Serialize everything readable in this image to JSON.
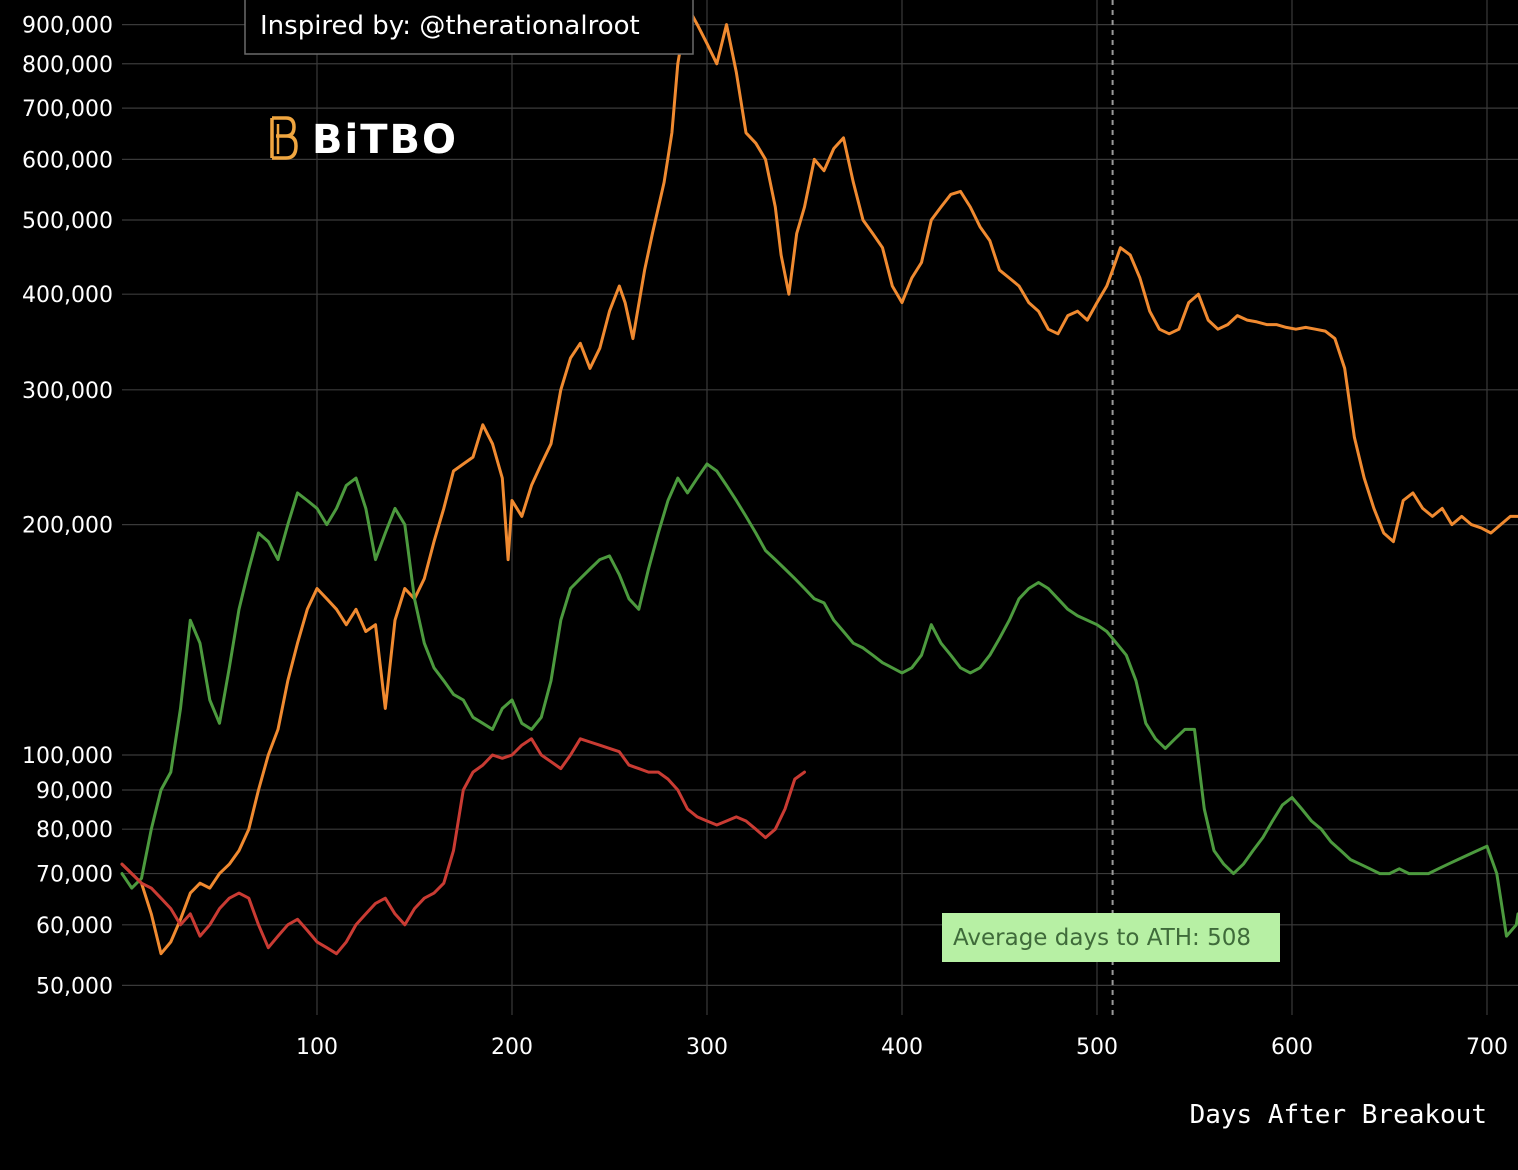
{
  "chart_data": {
    "type": "line",
    "title": "",
    "xlabel": "Days After Breakout",
    "ylabel": "",
    "xlim": [
      0,
      720
    ],
    "ylim": [
      45000,
      1000000
    ],
    "yscale": "log",
    "grid": true,
    "x_ticks": [
      100,
      200,
      300,
      400,
      500,
      600,
      700
    ],
    "x_tick_labels": [
      "100",
      "200",
      "300",
      "400",
      "500",
      "600",
      "700"
    ],
    "y_ticks": [
      50000,
      60000,
      70000,
      80000,
      90000,
      100000,
      200000,
      300000,
      400000,
      500000,
      600000,
      700000,
      800000,
      900000
    ],
    "y_tick_labels": [
      "50,000",
      "60,000",
      "70,000",
      "80,000",
      "90,000",
      "100,000",
      "200,000",
      "300,000",
      "400,000",
      "500,000",
      "600,000",
      "700,000",
      "800,000",
      "900,000"
    ],
    "series": [
      {
        "color": "#f08a30",
        "x": [
          0,
          10,
          15,
          20,
          25,
          30,
          35,
          40,
          45,
          50,
          55,
          60,
          65,
          70,
          75,
          80,
          85,
          90,
          95,
          100,
          105,
          110,
          115,
          120,
          125,
          130,
          135,
          140,
          145,
          150,
          155,
          160,
          165,
          170,
          175,
          180,
          185,
          190,
          195,
          198,
          200,
          205,
          210,
          215,
          220,
          225,
          230,
          235,
          240,
          245,
          250,
          255,
          258,
          262,
          268,
          272,
          278,
          282,
          285,
          290,
          295,
          300,
          305,
          310,
          315,
          320,
          325,
          330,
          335,
          338,
          342,
          346,
          350,
          355,
          360,
          365,
          370,
          375,
          380,
          385,
          390,
          395,
          400,
          405,
          410,
          415,
          420,
          425,
          430,
          435,
          440,
          445,
          450,
          455,
          460,
          465,
          470,
          475,
          480,
          485,
          490,
          495,
          500,
          505,
          508,
          512,
          517,
          522,
          527,
          532,
          537,
          542,
          547,
          552,
          557,
          562,
          567,
          572,
          577,
          582,
          587,
          592,
          597,
          602,
          607,
          612,
          617,
          622,
          627,
          632,
          637,
          642,
          647,
          652,
          657,
          662,
          667,
          672,
          677,
          682,
          687,
          692,
          697,
          702,
          707,
          712,
          720
        ],
        "values": [
          72000,
          68000,
          62000,
          55000,
          57000,
          61000,
          66000,
          68000,
          67000,
          70000,
          72000,
          75000,
          80000,
          90000,
          100000,
          108000,
          125000,
          140000,
          155000,
          165000,
          160000,
          155000,
          148000,
          155000,
          145000,
          148000,
          115000,
          150000,
          165000,
          160000,
          170000,
          190000,
          210000,
          235000,
          240000,
          245000,
          270000,
          255000,
          230000,
          180000,
          215000,
          205000,
          225000,
          240000,
          255000,
          300000,
          330000,
          345000,
          320000,
          340000,
          380000,
          410000,
          390000,
          350000,
          430000,
          480000,
          560000,
          650000,
          800000,
          950000,
          900000,
          850000,
          800000,
          900000,
          780000,
          650000,
          630000,
          600000,
          520000,
          450000,
          400000,
          480000,
          520000,
          600000,
          580000,
          620000,
          640000,
          560000,
          500000,
          480000,
          460000,
          410000,
          390000,
          420000,
          440000,
          500000,
          520000,
          540000,
          545000,
          520000,
          490000,
          470000,
          430000,
          420000,
          410000,
          390000,
          380000,
          360000,
          355000,
          375000,
          380000,
          370000,
          390000,
          410000,
          430000,
          460000,
          450000,
          420000,
          380000,
          360000,
          355000,
          360000,
          390000,
          400000,
          370000,
          360000,
          365000,
          375000,
          370000,
          368000,
          365000,
          365000,
          362000,
          360000,
          362000,
          360000,
          358000,
          350000,
          320000,
          260000,
          230000,
          210000,
          195000,
          190000,
          215000,
          220000,
          210000,
          205000,
          210000,
          200000,
          205000,
          200000,
          198000,
          195000,
          200000,
          205000,
          205000
        ]
      },
      {
        "color": "#4c9a3e",
        "x": [
          0,
          5,
          10,
          15,
          20,
          25,
          30,
          35,
          40,
          45,
          50,
          55,
          60,
          65,
          70,
          75,
          80,
          85,
          90,
          95,
          100,
          105,
          110,
          115,
          120,
          125,
          130,
          135,
          140,
          145,
          150,
          155,
          160,
          165,
          170,
          175,
          180,
          185,
          190,
          195,
          200,
          205,
          210,
          215,
          220,
          225,
          230,
          235,
          240,
          245,
          250,
          255,
          260,
          265,
          270,
          275,
          280,
          285,
          290,
          295,
          300,
          305,
          310,
          315,
          320,
          325,
          330,
          335,
          340,
          345,
          350,
          355,
          360,
          365,
          370,
          375,
          380,
          385,
          390,
          395,
          400,
          405,
          410,
          415,
          420,
          425,
          430,
          435,
          440,
          445,
          450,
          455,
          460,
          465,
          470,
          475,
          480,
          485,
          490,
          495,
          500,
          505,
          510,
          515,
          520,
          525,
          530,
          535,
          540,
          545,
          550,
          555,
          560,
          565,
          570,
          575,
          580,
          585,
          590,
          595,
          600,
          605,
          610,
          615,
          620,
          625,
          630,
          635,
          640,
          645,
          650,
          655,
          660,
          665,
          670,
          675,
          680,
          685,
          690,
          695,
          700,
          705,
          710,
          715,
          720
        ],
        "values": [
          70000,
          67000,
          69000,
          80000,
          90000,
          95000,
          115000,
          150000,
          140000,
          118000,
          110000,
          130000,
          155000,
          175000,
          195000,
          190000,
          180000,
          200000,
          220000,
          215000,
          210000,
          200000,
          210000,
          225000,
          230000,
          210000,
          180000,
          195000,
          210000,
          200000,
          160000,
          140000,
          130000,
          125000,
          120000,
          118000,
          112000,
          110000,
          108000,
          115000,
          118000,
          110000,
          108000,
          112000,
          125000,
          150000,
          165000,
          170000,
          175000,
          180000,
          182000,
          172000,
          160000,
          155000,
          175000,
          195000,
          215000,
          230000,
          220000,
          230000,
          240000,
          235000,
          225000,
          215000,
          205000,
          195000,
          185000,
          180000,
          175000,
          170000,
          165000,
          160000,
          158000,
          150000,
          145000,
          140000,
          138000,
          135000,
          132000,
          130000,
          128000,
          130000,
          135000,
          148000,
          140000,
          135000,
          130000,
          128000,
          130000,
          135000,
          142000,
          150000,
          160000,
          165000,
          168000,
          165000,
          160000,
          155000,
          152000,
          150000,
          148000,
          145000,
          140000,
          135000,
          125000,
          110000,
          105000,
          102000,
          105000,
          108000,
          108000,
          85000,
          75000,
          72000,
          70000,
          72000,
          75000,
          78000,
          82000,
          86000,
          88000,
          85000,
          82000,
          80000,
          77000,
          75000,
          73000,
          72000,
          71000,
          70000,
          70000,
          71000,
          70000,
          70000,
          70000,
          71000,
          72000,
          73000,
          74000,
          75000,
          76000,
          70000,
          58000,
          60000,
          62000
        ]
      },
      {
        "color": "#c93b33",
        "x": [
          0,
          5,
          10,
          15,
          20,
          25,
          30,
          35,
          40,
          45,
          50,
          55,
          60,
          65,
          70,
          75,
          80,
          85,
          90,
          95,
          100,
          105,
          110,
          115,
          120,
          125,
          130,
          135,
          140,
          145,
          150,
          155,
          160,
          165,
          170,
          175,
          180,
          185,
          190,
          195,
          200,
          205,
          210,
          215,
          220,
          225,
          230,
          235,
          240,
          245,
          250,
          255,
          260,
          265,
          270,
          275,
          280,
          285,
          290,
          295,
          300,
          305,
          310,
          315,
          320,
          325,
          330,
          335,
          340,
          345,
          350
        ],
        "values": [
          72000,
          70000,
          68000,
          67000,
          65000,
          63000,
          60000,
          62000,
          58000,
          60000,
          63000,
          65000,
          66000,
          65000,
          60000,
          56000,
          58000,
          60000,
          61000,
          59000,
          57000,
          56000,
          55000,
          57000,
          60000,
          62000,
          64000,
          65000,
          62000,
          60000,
          63000,
          65000,
          66000,
          68000,
          75000,
          90000,
          95000,
          97000,
          100000,
          99000,
          100000,
          103000,
          105000,
          100000,
          98000,
          96000,
          100000,
          105000,
          104000,
          103000,
          102000,
          101000,
          97000,
          96000,
          95000,
          95000,
          93000,
          90000,
          85000,
          83000,
          82000,
          81000,
          82000,
          83000,
          82000,
          80000,
          78000,
          80000,
          85000,
          93000,
          95000
        ]
      }
    ],
    "reference_line": {
      "x": 508,
      "style": "dashed"
    },
    "annotations": [
      {
        "text": "Average days to ATH: 508"
      },
      {
        "text": "Inspired by: @therationalroot"
      }
    ],
    "logo": "BiTBO",
    "colors": {
      "background": "#000000",
      "grid": "#3a3a3a",
      "text": "#ffffff",
      "annotation_bg": "#b7f0a4"
    }
  }
}
